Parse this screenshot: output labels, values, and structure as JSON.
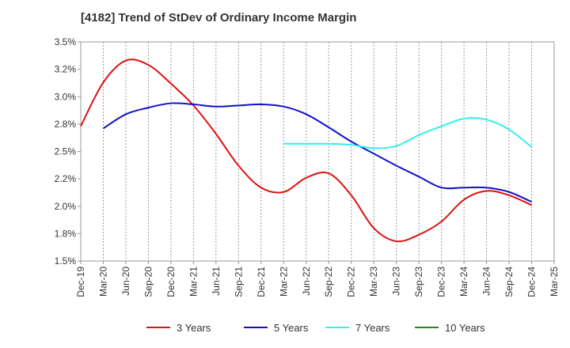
{
  "chart_data": {
    "type": "line",
    "title": "[4182]  Trend of StDev of Ordinary Income Margin",
    "xlabel": "",
    "ylabel": "",
    "ylim": [
      1.5,
      3.5
    ],
    "grid": "vertical dashed",
    "legend_position": "bottom",
    "x_ticks": [
      "Dec-19",
      "Mar-20",
      "Jun-20",
      "Sep-20",
      "Dec-20",
      "Mar-21",
      "Jun-21",
      "Sep-21",
      "Dec-21",
      "Mar-22",
      "Jun-22",
      "Sep-22",
      "Dec-22",
      "Mar-23",
      "Jun-23",
      "Sep-23",
      "Dec-23",
      "Mar-24",
      "Jun-24",
      "Sep-24",
      "Dec-24",
      "Mar-25"
    ],
    "y_ticks": [
      {
        "value": 1.5,
        "label": "1.5%"
      },
      {
        "value": 1.75,
        "label": "1.8%"
      },
      {
        "value": 2.0,
        "label": "2.0%"
      },
      {
        "value": 2.25,
        "label": "2.2%"
      },
      {
        "value": 2.5,
        "label": "2.5%"
      },
      {
        "value": 2.75,
        "label": "2.8%"
      },
      {
        "value": 3.0,
        "label": "3.0%"
      },
      {
        "value": 3.25,
        "label": "3.2%"
      },
      {
        "value": 3.5,
        "label": "3.5%"
      }
    ],
    "x": [
      "Dec-19",
      "Mar-20",
      "Jun-20",
      "Sep-20",
      "Dec-20",
      "Mar-21",
      "Jun-21",
      "Sep-21",
      "Dec-21",
      "Mar-22",
      "Jun-22",
      "Sep-22",
      "Dec-22",
      "Mar-23",
      "Jun-23",
      "Sep-23",
      "Dec-23",
      "Mar-24",
      "Jun-24",
      "Sep-24",
      "Dec-24"
    ],
    "series": [
      {
        "name": "3 Years",
        "color": "#dd1111",
        "values": [
          2.73,
          3.13,
          3.33,
          3.29,
          3.12,
          2.92,
          2.66,
          2.37,
          2.17,
          2.13,
          2.26,
          2.3,
          2.1,
          1.8,
          1.68,
          1.74,
          1.86,
          2.06,
          2.14,
          2.1,
          2.01
        ]
      },
      {
        "name": "5 Years",
        "color": "#1111cc",
        "values": [
          null,
          2.71,
          2.84,
          2.9,
          2.94,
          2.93,
          2.91,
          2.92,
          2.93,
          2.91,
          2.84,
          2.72,
          2.59,
          2.48,
          2.37,
          2.27,
          2.17,
          2.17,
          2.17,
          2.13,
          2.04
        ]
      },
      {
        "name": "7 Years",
        "color": "#33eeee",
        "values": [
          null,
          null,
          null,
          null,
          null,
          null,
          null,
          null,
          null,
          2.57,
          2.57,
          2.57,
          2.56,
          2.53,
          2.55,
          2.65,
          2.73,
          2.8,
          2.79,
          2.7,
          2.54
        ]
      },
      {
        "name": "10 Years",
        "color": "#228822",
        "values": [
          null,
          null,
          null,
          null,
          null,
          null,
          null,
          null,
          null,
          null,
          null,
          null,
          null,
          null,
          null,
          null,
          null,
          null,
          null,
          null,
          null
        ]
      }
    ]
  }
}
